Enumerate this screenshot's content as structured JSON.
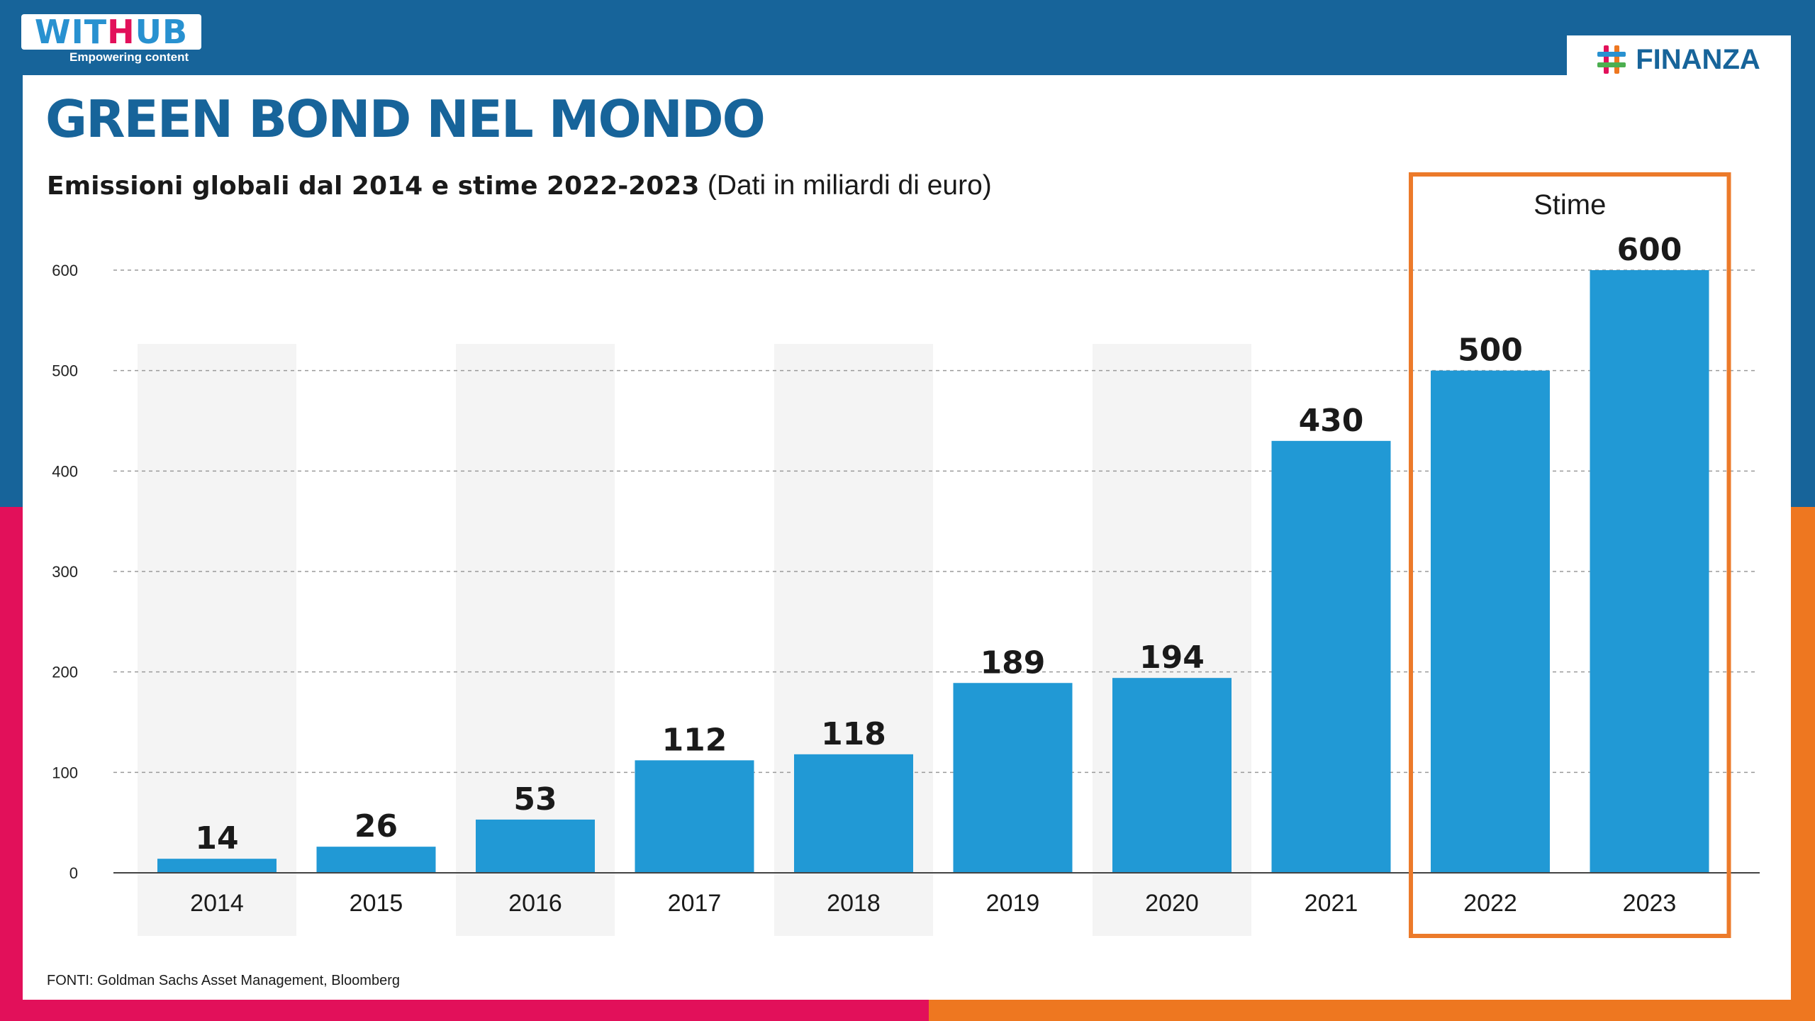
{
  "brand": {
    "logo_text_prefix": "WIT",
    "logo_text_h": "H",
    "logo_text_suffix": "UB",
    "tagline": "Empowering content",
    "section_badge": "FINANZA",
    "section_icon": "hash-icon"
  },
  "header": {
    "title": "GREEN BOND NEL MONDO",
    "subtitle_bold": "Emissioni globali dal 2014 e stime 2022-2023",
    "subtitle_normal": "(Dati in miliardi di euro)"
  },
  "footer": {
    "source": "FONTI: Goldman Sachs Asset Management, Bloomberg"
  },
  "colors": {
    "bar": "#2199d5",
    "title": "#17649a",
    "highlight_box": "#ec7a2a",
    "frame_magenta": "#e2105a",
    "frame_orange": "#ee7720"
  },
  "chart_data": {
    "type": "bar",
    "title": "",
    "xlabel": "",
    "ylabel": "",
    "categories": [
      "2014",
      "2015",
      "2016",
      "2017",
      "2018",
      "2019",
      "2020",
      "2021",
      "2022",
      "2023"
    ],
    "values": [
      14,
      26,
      53,
      112,
      118,
      189,
      194,
      430,
      500,
      600
    ],
    "data_labels": [
      "14",
      "26",
      "53",
      "112",
      "118",
      "189",
      "194",
      "430",
      "500",
      "600"
    ],
    "ylim": [
      0,
      600
    ],
    "yticks": [
      0,
      100,
      200,
      300,
      400,
      500,
      600
    ],
    "grid": "horizontal dashed",
    "legend": "none",
    "highlight": {
      "label": "Stime",
      "categories": [
        "2022",
        "2023"
      ]
    }
  }
}
